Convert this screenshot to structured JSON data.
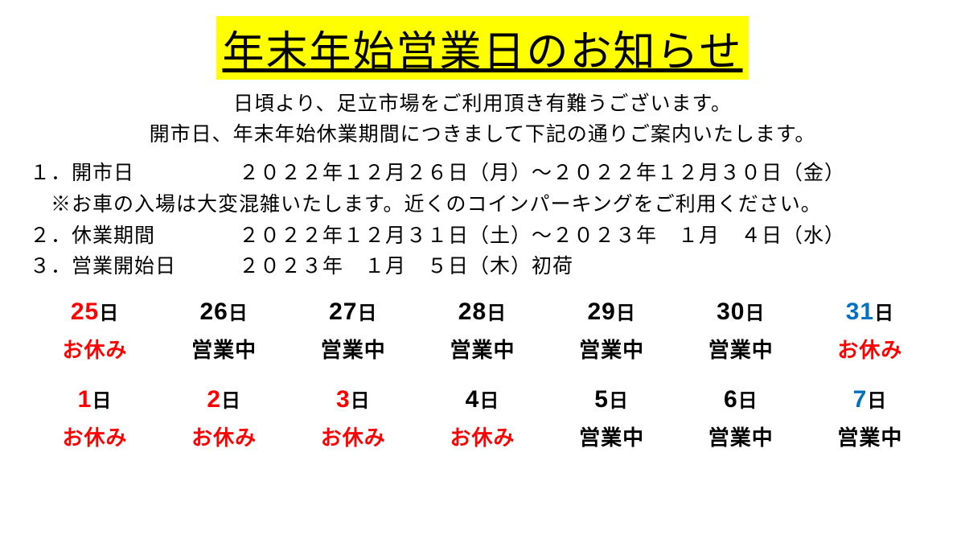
{
  "colors": {
    "title_bg": "#ffff00",
    "title_text": "#000000",
    "body_text": "#000000",
    "red": "#ff0000",
    "blue": "#0070c0",
    "black": "#000000"
  },
  "title": "年末年始営業日のお知らせ",
  "intro": [
    "日頃より、足立市場をご利用頂き有難うございます。",
    "開市日、年末年始休業期間につきまして下記の通りご案内いたします。"
  ],
  "info": [
    "１．開市日　　　　　２０２２年１２月２６日（月）～２０２２年１２月３０日（金）",
    "　※お車の入場は大変混雑いたします。近くのコインパーキングをご利用ください。",
    "２．休業期間　　　　２０２２年１２月３１日（土）～２０２３年　１月　４日（水）",
    "３．営業開始日　　　２０２３年　１月　５日（木）初荷"
  ],
  "day_suffix": "日",
  "status_labels": {
    "open": "営業中",
    "closed": "お休み"
  },
  "calendar": [
    [
      {
        "num": "25",
        "num_color": "red",
        "status": "closed",
        "status_color": "red"
      },
      {
        "num": "26",
        "num_color": "black",
        "status": "open",
        "status_color": "black"
      },
      {
        "num": "27",
        "num_color": "black",
        "status": "open",
        "status_color": "black"
      },
      {
        "num": "28",
        "num_color": "black",
        "status": "open",
        "status_color": "black"
      },
      {
        "num": "29",
        "num_color": "black",
        "status": "open",
        "status_color": "black"
      },
      {
        "num": "30",
        "num_color": "black",
        "status": "open",
        "status_color": "black"
      },
      {
        "num": "31",
        "num_color": "blue",
        "status": "closed",
        "status_color": "red"
      }
    ],
    [
      {
        "num": "1",
        "num_color": "red",
        "status": "closed",
        "status_color": "red"
      },
      {
        "num": "2",
        "num_color": "red",
        "status": "closed",
        "status_color": "red"
      },
      {
        "num": "3",
        "num_color": "red",
        "status": "closed",
        "status_color": "red"
      },
      {
        "num": "4",
        "num_color": "black",
        "status": "closed",
        "status_color": "red"
      },
      {
        "num": "5",
        "num_color": "black",
        "status": "open",
        "status_color": "black"
      },
      {
        "num": "6",
        "num_color": "black",
        "status": "open",
        "status_color": "black"
      },
      {
        "num": "7",
        "num_color": "blue",
        "status": "open",
        "status_color": "black"
      }
    ]
  ]
}
